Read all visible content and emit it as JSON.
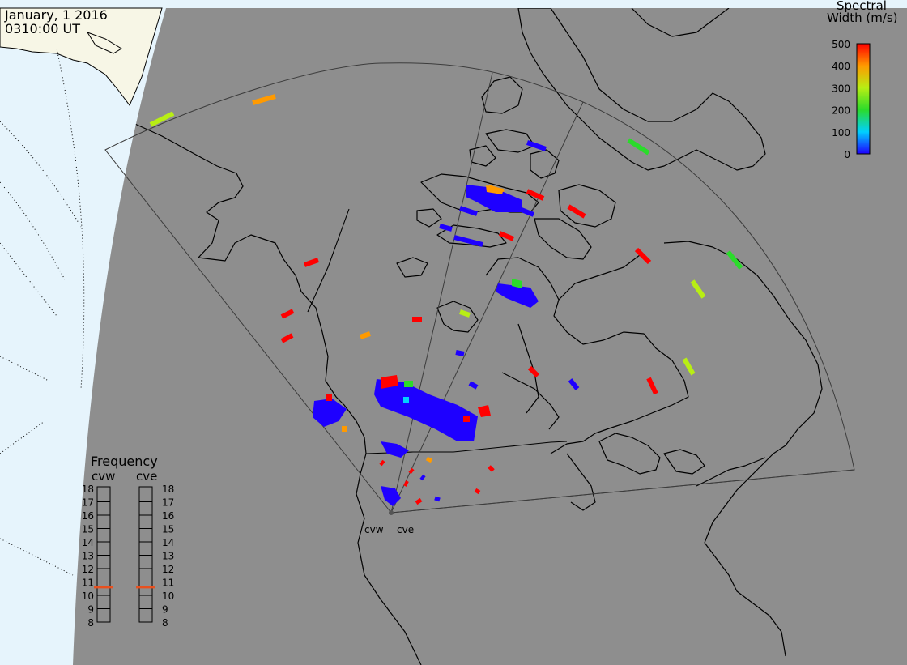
{
  "header": {
    "date": "January, 1 2016",
    "time": "0310:00 UT"
  },
  "colorbar": {
    "title_line1": "Spectral",
    "title_line2": "Width (m/s)",
    "ticks": [
      "500",
      "400",
      "300",
      "200",
      "100",
      "0"
    ],
    "min": 0,
    "max": 500
  },
  "radars": {
    "west_label": "cvw",
    "east_label": "cve"
  },
  "frequency_panel": {
    "title": "Frequency",
    "left_col_label": "cvw",
    "right_col_label": "cve",
    "ticks": [
      "18",
      "17",
      "16",
      "15",
      "14",
      "13",
      "12",
      "11",
      "10",
      "9",
      "8"
    ],
    "cvw_mhz": 10.6,
    "cve_mhz": 10.6,
    "marker_color": "#e8501e"
  },
  "colors": {
    "sea": "#e6f4fc",
    "night_side": "#8e8e8e",
    "coast": "#000000",
    "high_land": "#f7f6e6",
    "width_0": "#1e00ff",
    "width_100": "#00d0ff",
    "width_200": "#2bdb2b",
    "width_300": "#b8ee14",
    "width_400": "#ff9a00",
    "width_500": "#ff0000"
  }
}
